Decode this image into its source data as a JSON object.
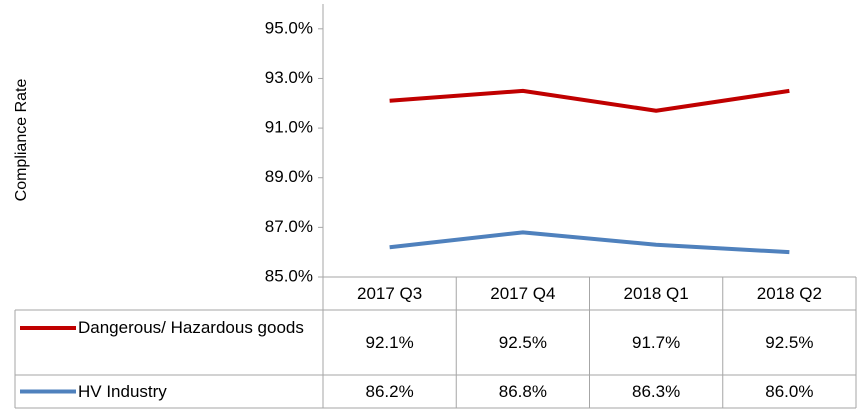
{
  "chart_data": {
    "type": "line",
    "y_label": "Compliance Rate",
    "categories": [
      "2017 Q3",
      "2017 Q4",
      "2018 Q1",
      "2018 Q2"
    ],
    "series": [
      {
        "name": "Dangerous/ Hazardous goods",
        "color": "#c00000",
        "values": [
          92.1,
          92.5,
          91.7,
          92.5
        ],
        "value_labels": [
          "92.1%",
          "92.5%",
          "91.7%",
          "92.5%"
        ]
      },
      {
        "name": "HV Industry",
        "color": "#4f81bd",
        "values": [
          86.2,
          86.8,
          86.3,
          86.0
        ],
        "value_labels": [
          "86.2%",
          "86.8%",
          "86.3%",
          "86.0%"
        ]
      }
    ],
    "ylim": [
      85,
      96
    ],
    "yticks": [
      {
        "value": 85,
        "label": "85.0%"
      },
      {
        "value": 87,
        "label": "87.0%"
      },
      {
        "value": 89,
        "label": "89.0%"
      },
      {
        "value": 91,
        "label": "91.0%"
      },
      {
        "value": 93,
        "label": "93.0%"
      },
      {
        "value": 95,
        "label": "95.0%"
      }
    ],
    "data_table": true
  }
}
